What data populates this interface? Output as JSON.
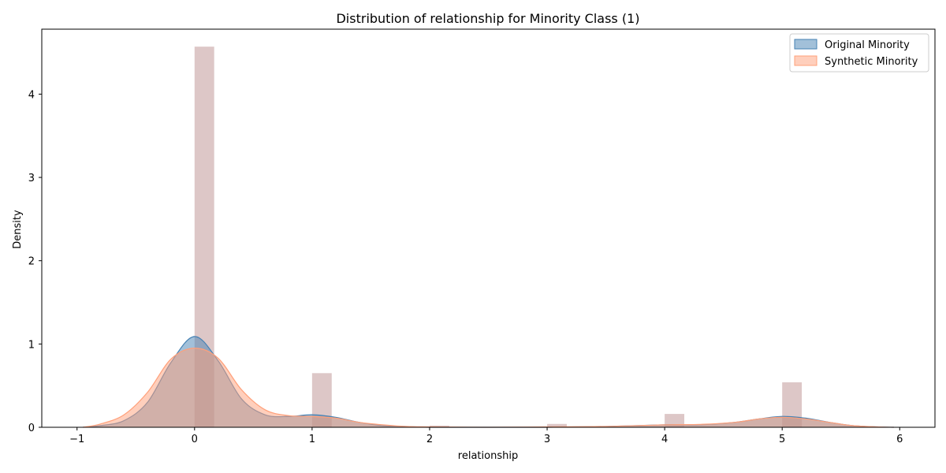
{
  "chart_data": {
    "type": "area",
    "title": "Distribution of relationship for Minority Class (1)",
    "xlabel": "relationship",
    "ylabel": "Density",
    "xlim": [
      -1.3,
      6.3
    ],
    "ylim": [
      0,
      4.78
    ],
    "xticks": [
      -1,
      0,
      1,
      2,
      3,
      4,
      5,
      6
    ],
    "xtick_labels": [
      "−1",
      "0",
      "1",
      "2",
      "3",
      "4",
      "5",
      "6"
    ],
    "yticks": [
      0,
      1,
      2,
      3,
      4
    ],
    "ytick_labels": [
      "0",
      "1",
      "2",
      "3",
      "4"
    ],
    "grid": false,
    "legend_position": "top-right",
    "histogram": {
      "bar_width": 0.167,
      "color": "#bc8f8f",
      "bins": [
        {
          "x": 0,
          "height": 4.57
        },
        {
          "x": 1,
          "height": 0.65
        },
        {
          "x": 2,
          "height": 0.02
        },
        {
          "x": 3,
          "height": 0.04
        },
        {
          "x": 4,
          "height": 0.16
        },
        {
          "x": 5,
          "height": 0.54
        }
      ]
    },
    "series": [
      {
        "name": "Original Minority",
        "color": "#4682b4",
        "x": [
          -0.95,
          -0.8,
          -0.6,
          -0.4,
          -0.2,
          0,
          0.2,
          0.4,
          0.6,
          0.8,
          1.0,
          1.2,
          1.4,
          1.6,
          1.8,
          2.0,
          2.5,
          3.0,
          3.5,
          4.0,
          4.3,
          4.6,
          4.8,
          5.0,
          5.2,
          5.4,
          5.6,
          5.8,
          5.95
        ],
        "y": [
          0.0,
          0.02,
          0.08,
          0.3,
          0.78,
          1.09,
          0.8,
          0.34,
          0.15,
          0.13,
          0.15,
          0.12,
          0.06,
          0.02,
          0.01,
          0.0,
          0.0,
          0.0,
          0.01,
          0.03,
          0.03,
          0.06,
          0.1,
          0.13,
          0.11,
          0.06,
          0.02,
          0.005,
          0.0
        ]
      },
      {
        "name": "Synthetic Minority",
        "color": "#ffa07a",
        "x": [
          -0.95,
          -0.8,
          -0.6,
          -0.4,
          -0.2,
          0,
          0.2,
          0.4,
          0.6,
          0.8,
          1.0,
          1.2,
          1.4,
          1.6,
          1.8,
          2.0,
          2.5,
          3.0,
          3.5,
          4.0,
          4.3,
          4.6,
          4.8,
          5.0,
          5.2,
          5.4,
          5.6,
          5.8,
          5.95
        ],
        "y": [
          0.0,
          0.04,
          0.15,
          0.42,
          0.82,
          0.95,
          0.83,
          0.45,
          0.21,
          0.14,
          0.13,
          0.11,
          0.06,
          0.03,
          0.01,
          0.005,
          0.0,
          0.005,
          0.01,
          0.03,
          0.035,
          0.06,
          0.1,
          0.12,
          0.1,
          0.06,
          0.02,
          0.005,
          0.0
        ]
      }
    ]
  }
}
